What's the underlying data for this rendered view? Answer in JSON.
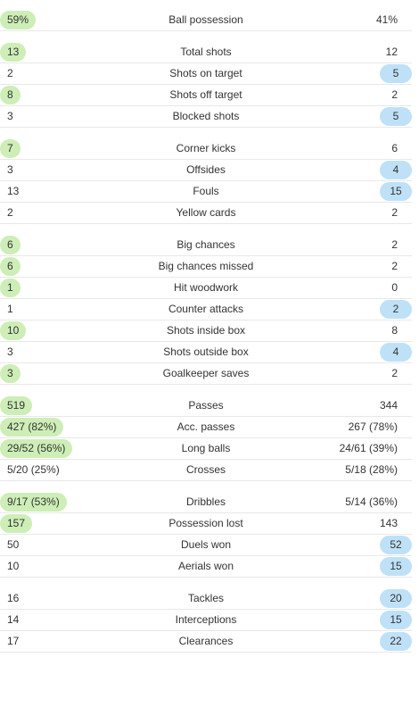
{
  "groups": [
    {
      "rows": [
        {
          "label": "Ball possession",
          "home": "59%",
          "away": "41%",
          "leader": "home"
        }
      ]
    },
    {
      "rows": [
        {
          "label": "Total shots",
          "home": "13",
          "away": "12",
          "leader": "home"
        },
        {
          "label": "Shots on target",
          "home": "2",
          "away": "5",
          "leader": "away"
        },
        {
          "label": "Shots off target",
          "home": "8",
          "away": "2",
          "leader": "home"
        },
        {
          "label": "Blocked shots",
          "home": "3",
          "away": "5",
          "leader": "away"
        }
      ]
    },
    {
      "rows": [
        {
          "label": "Corner kicks",
          "home": "7",
          "away": "6",
          "leader": "home"
        },
        {
          "label": "Offsides",
          "home": "3",
          "away": "4",
          "leader": "away"
        },
        {
          "label": "Fouls",
          "home": "13",
          "away": "15",
          "leader": "away"
        },
        {
          "label": "Yellow cards",
          "home": "2",
          "away": "2",
          "leader": "none"
        }
      ]
    },
    {
      "rows": [
        {
          "label": "Big chances",
          "home": "6",
          "away": "2",
          "leader": "home"
        },
        {
          "label": "Big chances missed",
          "home": "6",
          "away": "2",
          "leader": "home"
        },
        {
          "label": "Hit woodwork",
          "home": "1",
          "away": "0",
          "leader": "home"
        },
        {
          "label": "Counter attacks",
          "home": "1",
          "away": "2",
          "leader": "away"
        },
        {
          "label": "Shots inside box",
          "home": "10",
          "away": "8",
          "leader": "home"
        },
        {
          "label": "Shots outside box",
          "home": "3",
          "away": "4",
          "leader": "away"
        },
        {
          "label": "Goalkeeper saves",
          "home": "3",
          "away": "2",
          "leader": "home"
        }
      ]
    },
    {
      "rows": [
        {
          "label": "Passes",
          "home": "519",
          "away": "344",
          "leader": "home"
        },
        {
          "label": "Acc. passes",
          "home": "427 (82%)",
          "away": "267 (78%)",
          "leader": "home"
        },
        {
          "label": "Long balls",
          "home": "29/52 (56%)",
          "away": "24/61 (39%)",
          "leader": "home"
        },
        {
          "label": "Crosses",
          "home": "5/20 (25%)",
          "away": "5/18 (28%)",
          "leader": "none"
        }
      ]
    },
    {
      "rows": [
        {
          "label": "Dribbles",
          "home": "9/17 (53%)",
          "away": "5/14 (36%)",
          "leader": "home"
        },
        {
          "label": "Possession lost",
          "home": "157",
          "away": "143",
          "leader": "home"
        },
        {
          "label": "Duels won",
          "home": "50",
          "away": "52",
          "leader": "away"
        },
        {
          "label": "Aerials won",
          "home": "10",
          "away": "15",
          "leader": "away"
        }
      ]
    },
    {
      "rows": [
        {
          "label": "Tackles",
          "home": "16",
          "away": "20",
          "leader": "away"
        },
        {
          "label": "Interceptions",
          "home": "14",
          "away": "15",
          "leader": "away"
        },
        {
          "label": "Clearances",
          "home": "17",
          "away": "22",
          "leader": "away"
        }
      ]
    }
  ]
}
